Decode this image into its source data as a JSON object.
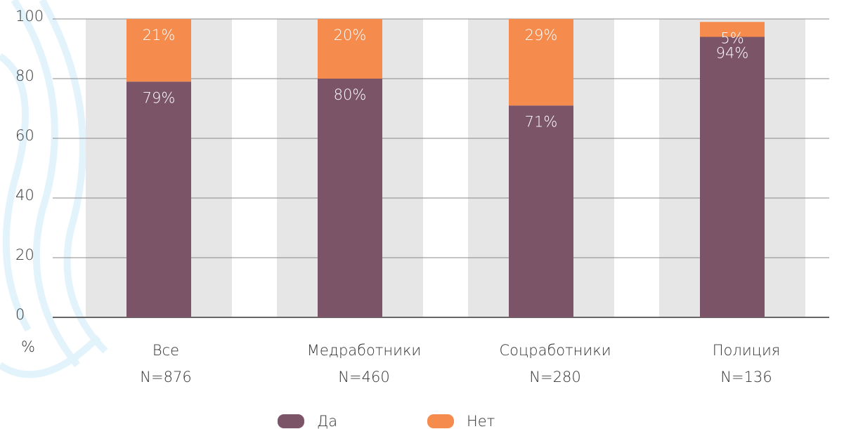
{
  "chart_data": {
    "type": "stacked_bar",
    "categories": [
      [
        "Все",
        "N=876"
      ],
      [
        "Медработники",
        "N=460"
      ],
      [
        "Соцработники",
        "N=280"
      ],
      [
        "Полиция",
        "N=136"
      ]
    ],
    "series": [
      {
        "name": "Да",
        "color": "#7b5468",
        "values": [
          79,
          80,
          71,
          94
        ],
        "value_labels": [
          "79%",
          "80%",
          "71%",
          "94%"
        ]
      },
      {
        "name": "Нет",
        "color": "#f58b4c",
        "values": [
          21,
          20,
          29,
          5
        ],
        "value_labels": [
          "21%",
          "20%",
          "29%",
          "5%"
        ]
      }
    ],
    "y_label": "%",
    "ylim": [
      0,
      100
    ],
    "yticks": [
      0,
      20,
      40,
      60,
      80,
      100
    ],
    "grid": true
  }
}
